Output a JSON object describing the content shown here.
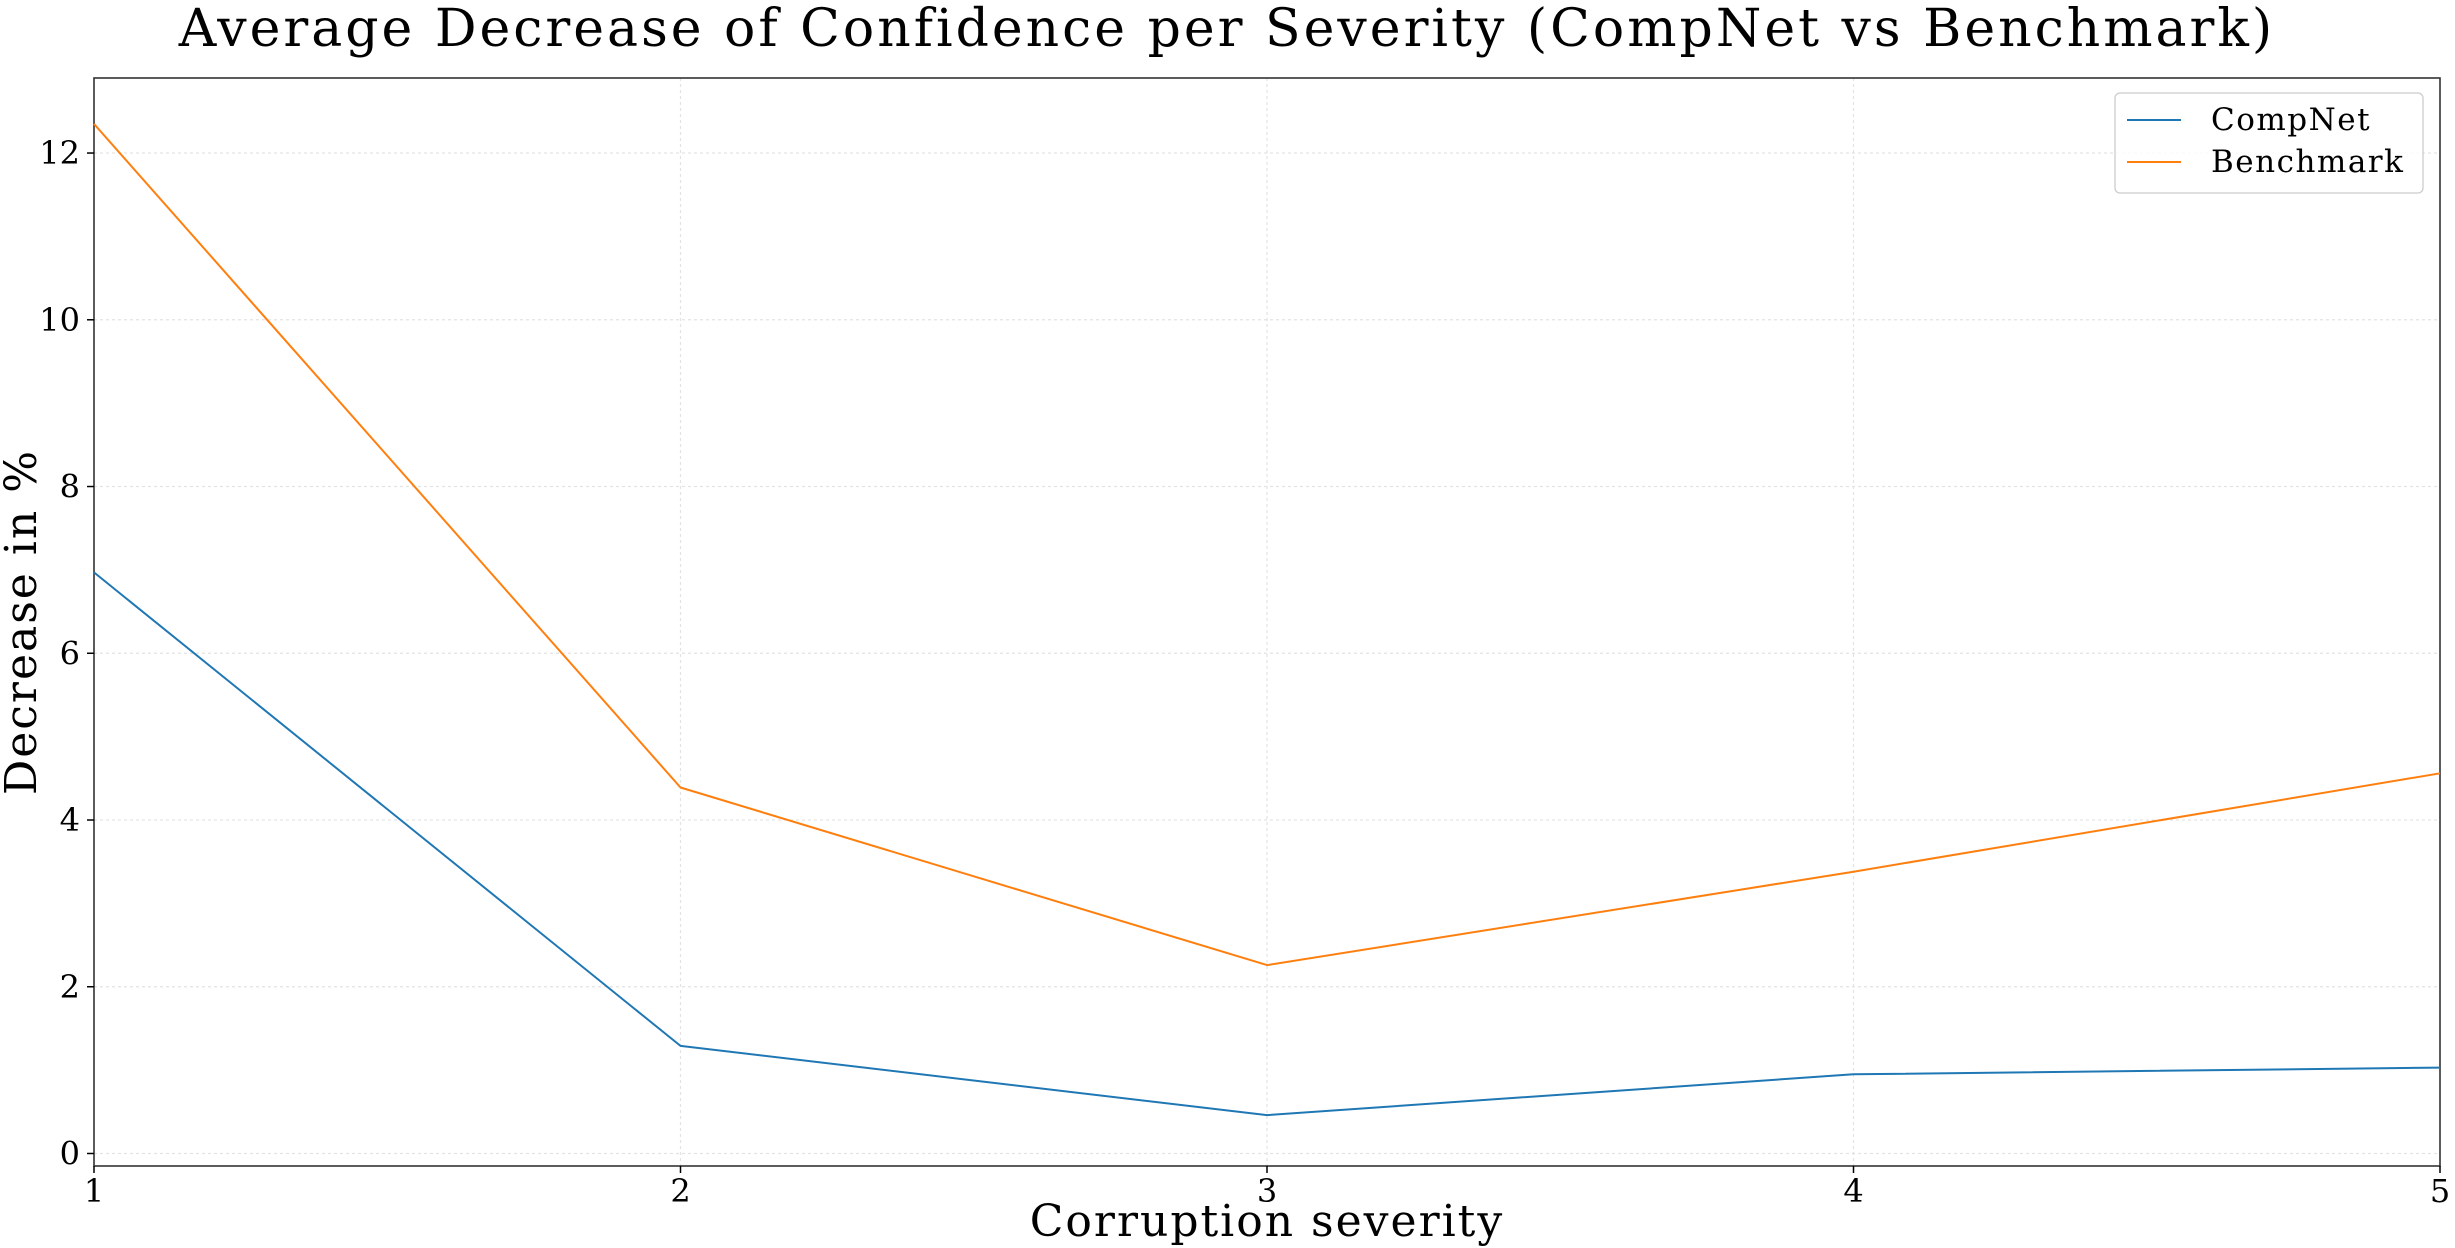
{
  "chart_data": {
    "type": "line",
    "title": "Average Decrease of Confidence per Severity (CompNet vs Benchmark)",
    "xlabel": "Corruption severity",
    "ylabel": "Decrease in %",
    "x": [
      1,
      2,
      3,
      4,
      5
    ],
    "xlim": [
      1,
      5
    ],
    "ylim": [
      -0.15,
      12.9
    ],
    "xticks": [
      1,
      2,
      3,
      4,
      5
    ],
    "yticks": [
      0,
      2,
      4,
      6,
      8,
      10,
      12
    ],
    "grid": true,
    "legend_position": "top-right",
    "series": [
      {
        "name": "CompNet",
        "color": "#1f77b4",
        "values": [
          6.97,
          1.29,
          0.46,
          0.95,
          1.03
        ]
      },
      {
        "name": "Benchmark",
        "color": "#ff7f0e",
        "values": [
          12.35,
          4.39,
          2.26,
          3.38,
          4.56
        ]
      }
    ]
  }
}
